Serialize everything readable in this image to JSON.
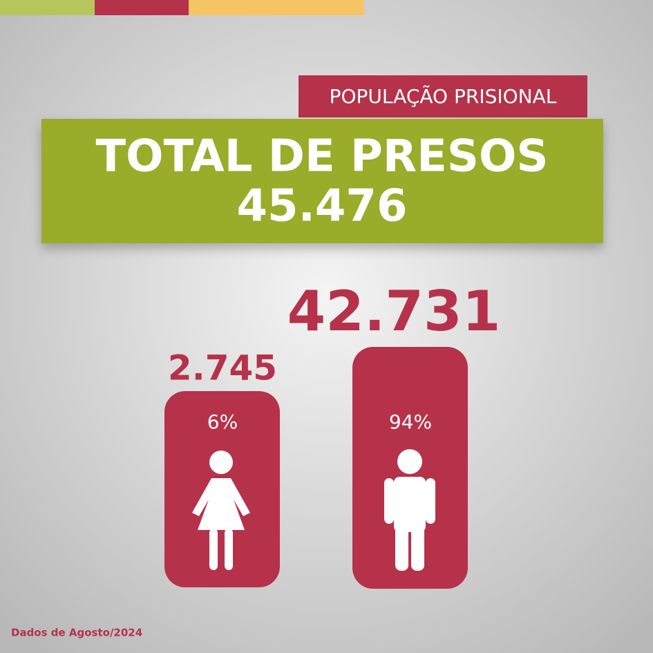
{
  "header": {
    "tag": "POPULAÇÃO PRISIONAL",
    "title": "TOTAL DE PRESOS",
    "total": "45.476"
  },
  "groups": [
    {
      "value": "2.745",
      "percent": "6%"
    },
    {
      "value": "42.731",
      "percent": "94%"
    }
  ],
  "footer": "Dados de Agosto/2024"
}
